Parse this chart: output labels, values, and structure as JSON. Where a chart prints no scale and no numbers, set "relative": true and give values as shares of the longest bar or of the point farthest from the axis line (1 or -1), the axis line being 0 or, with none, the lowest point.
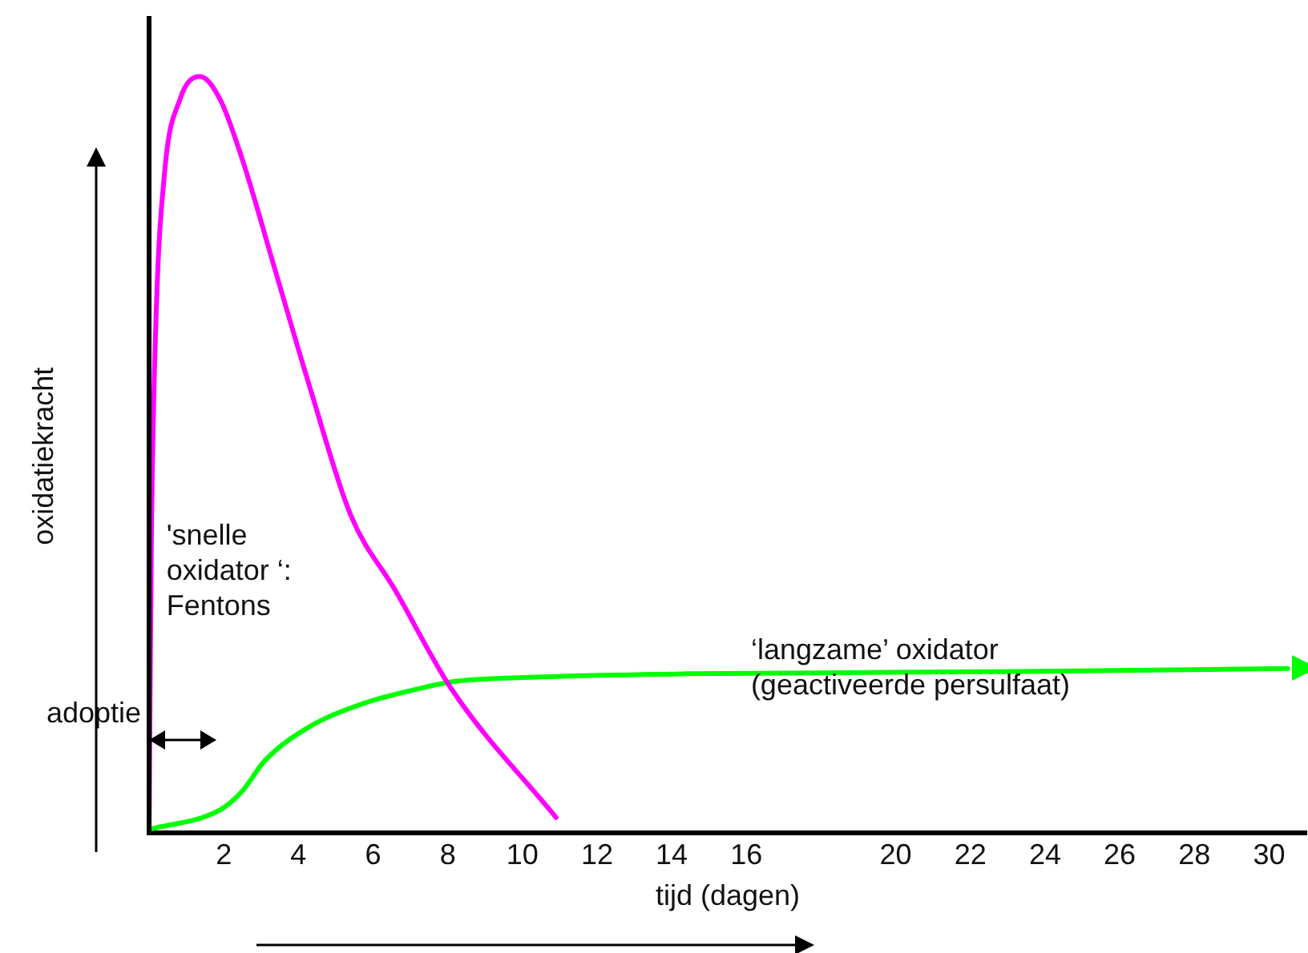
{
  "chart_data": {
    "type": "line",
    "relative": true,
    "xlabel": "tijd (dagen)",
    "ylabel": "oxidatiekracht",
    "xlim": [
      0,
      31
    ],
    "xticks": [
      2,
      4,
      6,
      8,
      10,
      12,
      14,
      16,
      20,
      22,
      24,
      26,
      28,
      30
    ],
    "grid": false,
    "legend": false,
    "marker": "none",
    "line_style": "solid",
    "annotations": [
      "adoptie"
    ],
    "series": [
      {
        "name": "'snelle\noxidator ‘:\nFentons",
        "color": "#ff00ff",
        "x": [
          0,
          0.06,
          0.18,
          0.41,
          0.83,
          1.36,
          1.9,
          2.5,
          3.4,
          4.3,
          5.4,
          6.6,
          8.1,
          10.9
        ],
        "values": [
          0,
          0.38,
          0.67,
          0.87,
          0.97,
          1,
          0.97,
          0.89,
          0.74,
          0.59,
          0.42,
          0.32,
          0.19,
          0.02
        ]
      },
      {
        "name": "‘langzame’ oxidator\n(geactiveerde persulfaat)",
        "color": "#00ff00",
        "x": [
          0,
          1.9,
          2.5,
          3.1,
          4.3,
          5.7,
          7.2,
          8.2,
          10,
          14.4,
          23.3,
          30.5
        ],
        "values": [
          0.004,
          0.03,
          0.055,
          0.095,
          0.14,
          0.17,
          0.19,
          0.2,
          0.205,
          0.21,
          0.213,
          0.217
        ]
      }
    ]
  }
}
